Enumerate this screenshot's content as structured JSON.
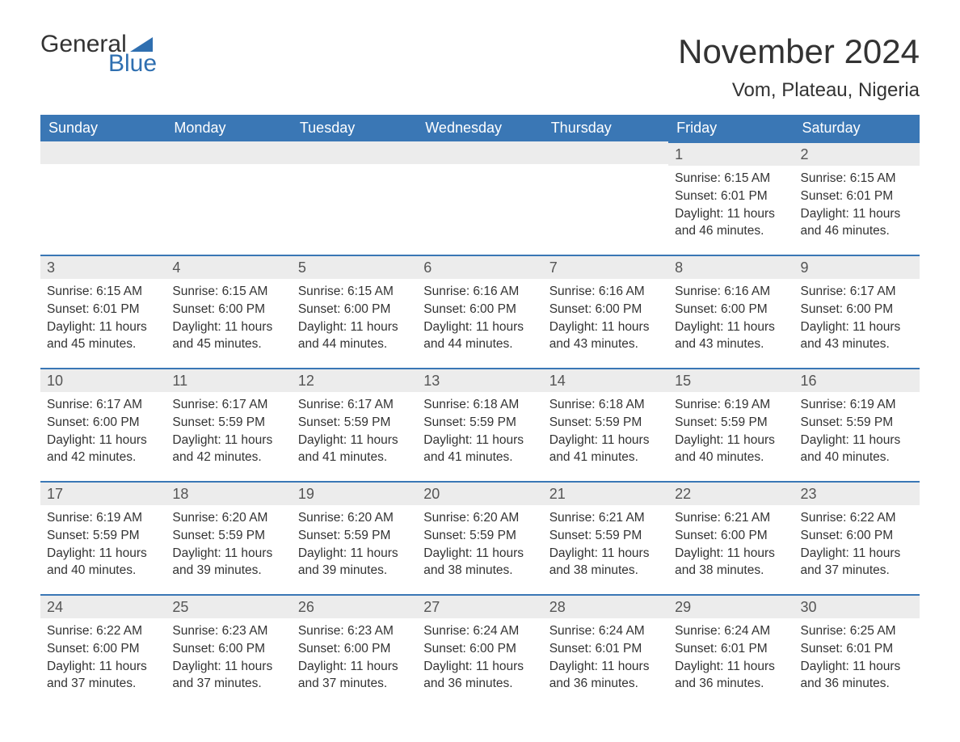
{
  "brand": {
    "general": "General",
    "blue": "Blue",
    "tri_color": "#2f6fb0"
  },
  "title": "November 2024",
  "location": "Vom, Plateau, Nigeria",
  "colors": {
    "header_bg": "#3a77b5",
    "header_text": "#ffffff",
    "daynum_bg": "#ececec",
    "cell_border_top": "#3a77b5",
    "body_text": "#333333"
  },
  "day_headers": [
    "Sunday",
    "Monday",
    "Tuesday",
    "Wednesday",
    "Thursday",
    "Friday",
    "Saturday"
  ],
  "labels": {
    "sunrise": "Sunrise:",
    "sunset": "Sunset:",
    "daylight": "Daylight:"
  },
  "weeks": [
    [
      {
        "blank": true
      },
      {
        "blank": true
      },
      {
        "blank": true
      },
      {
        "blank": true
      },
      {
        "blank": true
      },
      {
        "n": "1",
        "sunrise": "6:15 AM",
        "sunset": "6:01 PM",
        "daylight": "11 hours and 46 minutes."
      },
      {
        "n": "2",
        "sunrise": "6:15 AM",
        "sunset": "6:01 PM",
        "daylight": "11 hours and 46 minutes."
      }
    ],
    [
      {
        "n": "3",
        "sunrise": "6:15 AM",
        "sunset": "6:01 PM",
        "daylight": "11 hours and 45 minutes."
      },
      {
        "n": "4",
        "sunrise": "6:15 AM",
        "sunset": "6:00 PM",
        "daylight": "11 hours and 45 minutes."
      },
      {
        "n": "5",
        "sunrise": "6:15 AM",
        "sunset": "6:00 PM",
        "daylight": "11 hours and 44 minutes."
      },
      {
        "n": "6",
        "sunrise": "6:16 AM",
        "sunset": "6:00 PM",
        "daylight": "11 hours and 44 minutes."
      },
      {
        "n": "7",
        "sunrise": "6:16 AM",
        "sunset": "6:00 PM",
        "daylight": "11 hours and 43 minutes."
      },
      {
        "n": "8",
        "sunrise": "6:16 AM",
        "sunset": "6:00 PM",
        "daylight": "11 hours and 43 minutes."
      },
      {
        "n": "9",
        "sunrise": "6:17 AM",
        "sunset": "6:00 PM",
        "daylight": "11 hours and 43 minutes."
      }
    ],
    [
      {
        "n": "10",
        "sunrise": "6:17 AM",
        "sunset": "6:00 PM",
        "daylight": "11 hours and 42 minutes."
      },
      {
        "n": "11",
        "sunrise": "6:17 AM",
        "sunset": "5:59 PM",
        "daylight": "11 hours and 42 minutes."
      },
      {
        "n": "12",
        "sunrise": "6:17 AM",
        "sunset": "5:59 PM",
        "daylight": "11 hours and 41 minutes."
      },
      {
        "n": "13",
        "sunrise": "6:18 AM",
        "sunset": "5:59 PM",
        "daylight": "11 hours and 41 minutes."
      },
      {
        "n": "14",
        "sunrise": "6:18 AM",
        "sunset": "5:59 PM",
        "daylight": "11 hours and 41 minutes."
      },
      {
        "n": "15",
        "sunrise": "6:19 AM",
        "sunset": "5:59 PM",
        "daylight": "11 hours and 40 minutes."
      },
      {
        "n": "16",
        "sunrise": "6:19 AM",
        "sunset": "5:59 PM",
        "daylight": "11 hours and 40 minutes."
      }
    ],
    [
      {
        "n": "17",
        "sunrise": "6:19 AM",
        "sunset": "5:59 PM",
        "daylight": "11 hours and 40 minutes."
      },
      {
        "n": "18",
        "sunrise": "6:20 AM",
        "sunset": "5:59 PM",
        "daylight": "11 hours and 39 minutes."
      },
      {
        "n": "19",
        "sunrise": "6:20 AM",
        "sunset": "5:59 PM",
        "daylight": "11 hours and 39 minutes."
      },
      {
        "n": "20",
        "sunrise": "6:20 AM",
        "sunset": "5:59 PM",
        "daylight": "11 hours and 38 minutes."
      },
      {
        "n": "21",
        "sunrise": "6:21 AM",
        "sunset": "5:59 PM",
        "daylight": "11 hours and 38 minutes."
      },
      {
        "n": "22",
        "sunrise": "6:21 AM",
        "sunset": "6:00 PM",
        "daylight": "11 hours and 38 minutes."
      },
      {
        "n": "23",
        "sunrise": "6:22 AM",
        "sunset": "6:00 PM",
        "daylight": "11 hours and 37 minutes."
      }
    ],
    [
      {
        "n": "24",
        "sunrise": "6:22 AM",
        "sunset": "6:00 PM",
        "daylight": "11 hours and 37 minutes."
      },
      {
        "n": "25",
        "sunrise": "6:23 AM",
        "sunset": "6:00 PM",
        "daylight": "11 hours and 37 minutes."
      },
      {
        "n": "26",
        "sunrise": "6:23 AM",
        "sunset": "6:00 PM",
        "daylight": "11 hours and 37 minutes."
      },
      {
        "n": "27",
        "sunrise": "6:24 AM",
        "sunset": "6:00 PM",
        "daylight": "11 hours and 36 minutes."
      },
      {
        "n": "28",
        "sunrise": "6:24 AM",
        "sunset": "6:01 PM",
        "daylight": "11 hours and 36 minutes."
      },
      {
        "n": "29",
        "sunrise": "6:24 AM",
        "sunset": "6:01 PM",
        "daylight": "11 hours and 36 minutes."
      },
      {
        "n": "30",
        "sunrise": "6:25 AM",
        "sunset": "6:01 PM",
        "daylight": "11 hours and 36 minutes."
      }
    ]
  ]
}
